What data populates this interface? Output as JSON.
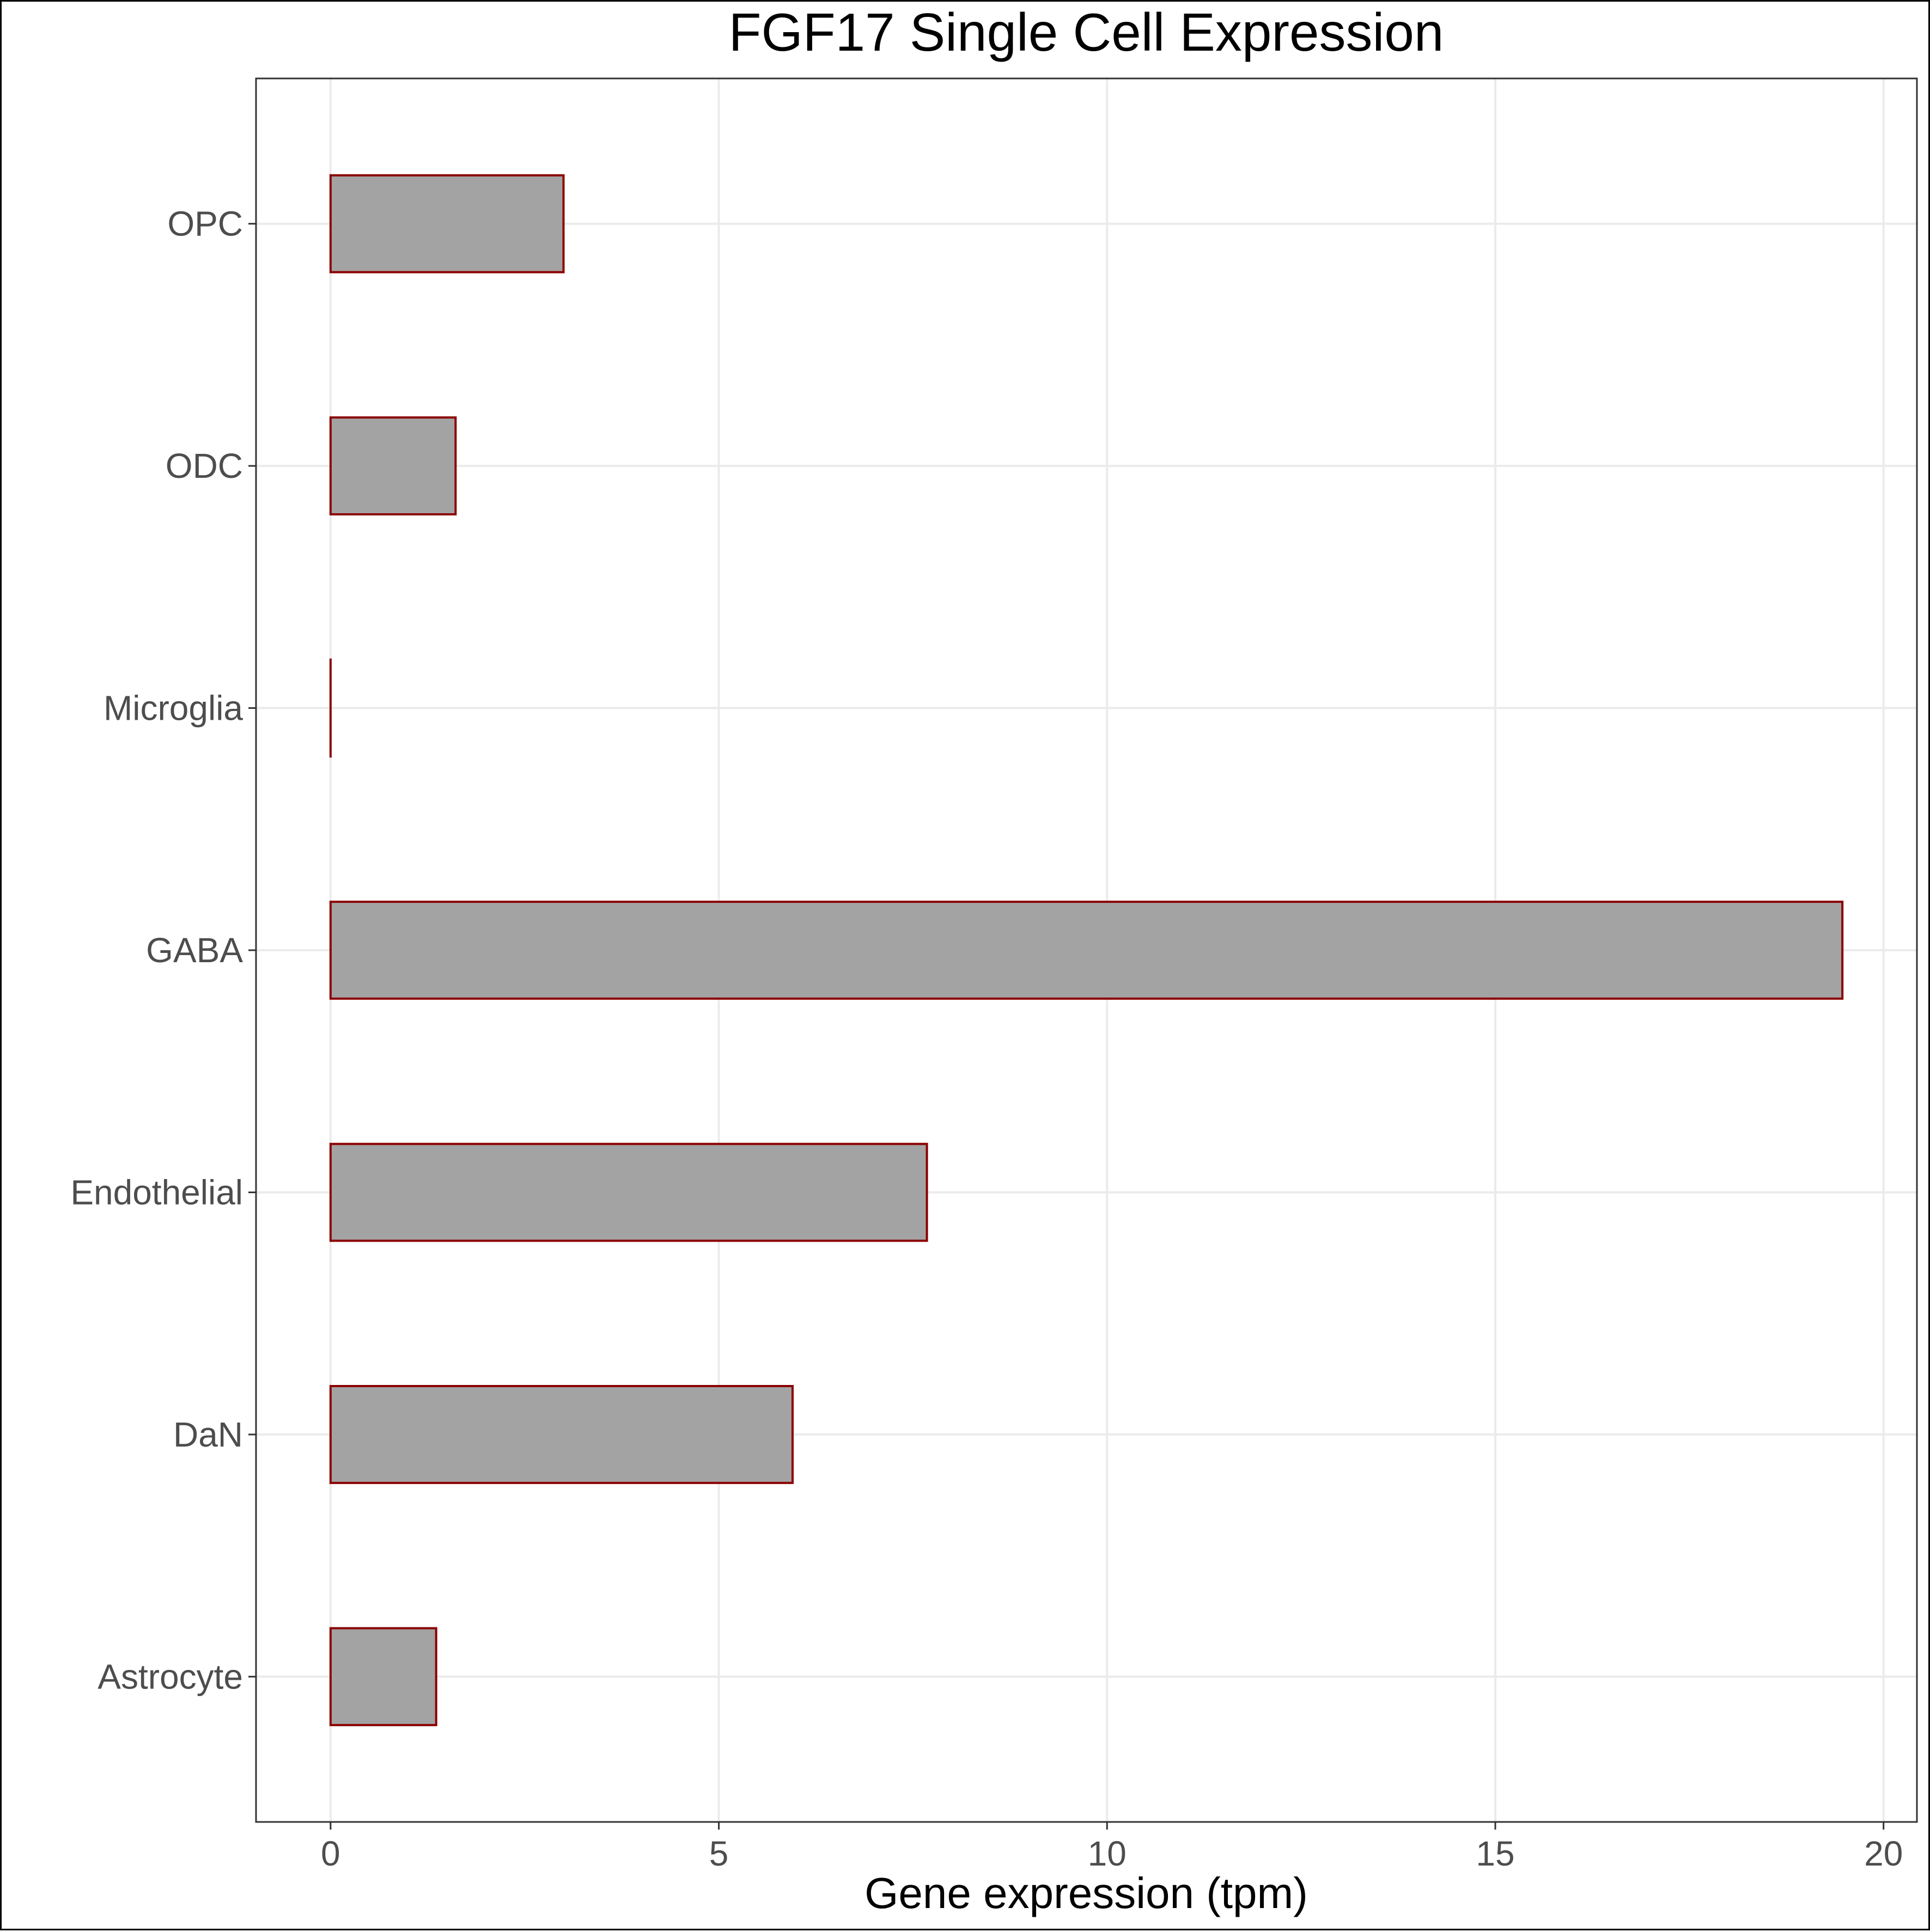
{
  "chart_data": {
    "type": "bar",
    "orientation": "horizontal",
    "title": "FGF17 Single Cell Expression",
    "xlabel": "Gene expression (tpm)",
    "ylabel": "",
    "categories": [
      "Astrocyte",
      "DaN",
      "Endothelial",
      "GABA",
      "Microglia",
      "ODC",
      "OPC"
    ],
    "values": [
      1.36,
      5.95,
      7.68,
      19.47,
      0.0,
      1.61,
      3.0
    ],
    "xlim": [
      -0.96,
      20.43
    ],
    "xticks": [
      0,
      5,
      10,
      15,
      20
    ],
    "xtick_labels": [
      "0",
      "5",
      "10",
      "15",
      "20"
    ],
    "grid": true,
    "legend": "none",
    "colors": {
      "bar_fill": "#a3a3a3",
      "bar_outline": "#8b0000",
      "grid": "#ebebeb",
      "panel_border": "#333333",
      "tick_label": "#4d4d4d",
      "text": "#000000"
    }
  }
}
